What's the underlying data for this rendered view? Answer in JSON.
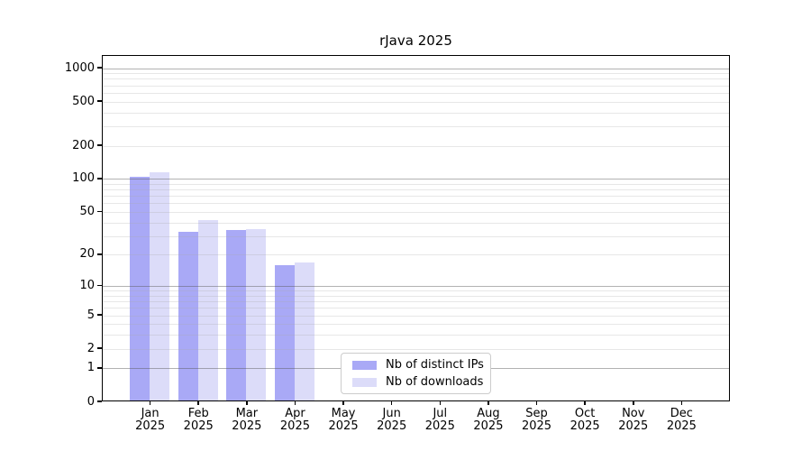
{
  "title": "rJava 2025",
  "chart_data": {
    "type": "bar",
    "title": "rJava 2025",
    "categories": [
      "Jan",
      "Feb",
      "Mar",
      "Apr",
      "May",
      "Jun",
      "Jul",
      "Aug",
      "Sep",
      "Oct",
      "Nov",
      "Dec"
    ],
    "category_year": "2025",
    "series": [
      {
        "name": "Nb of distinct IPs",
        "color": "#a9a9f6",
        "values": [
          104,
          33,
          34,
          16,
          0,
          0,
          0,
          0,
          0,
          0,
          0,
          0
        ]
      },
      {
        "name": "Nb of downloads",
        "color": "#dcdcf9",
        "values": [
          115,
          42,
          35,
          17,
          0,
          0,
          0,
          0,
          0,
          0,
          0,
          0
        ]
      }
    ],
    "y_axis": {
      "scale": "log10(value+1)",
      "tick_values": [
        1000,
        500,
        200,
        100,
        50,
        20,
        10,
        5,
        2,
        1,
        0
      ],
      "major_grid_values": [
        1,
        10,
        100,
        1000
      ],
      "minor_grid_values": [
        2,
        3,
        4,
        5,
        6,
        7,
        8,
        9,
        20,
        30,
        40,
        50,
        60,
        70,
        80,
        90,
        200,
        300,
        400,
        500,
        600,
        700,
        800,
        900
      ],
      "ylim": [
        0,
        1280
      ]
    },
    "grid": true,
    "legend_position": "inside-bottom-center",
    "colors": {
      "grid_major": "rgba(85,85,85,0.45)",
      "grid_minor": "rgba(170,170,170,0.28)",
      "axis": "#000000",
      "background": "#ffffff"
    }
  },
  "legend": {
    "items": [
      {
        "label": "Nb of distinct IPs",
        "color": "#a9a9f6"
      },
      {
        "label": "Nb of downloads",
        "color": "#dcdcf9"
      }
    ]
  }
}
